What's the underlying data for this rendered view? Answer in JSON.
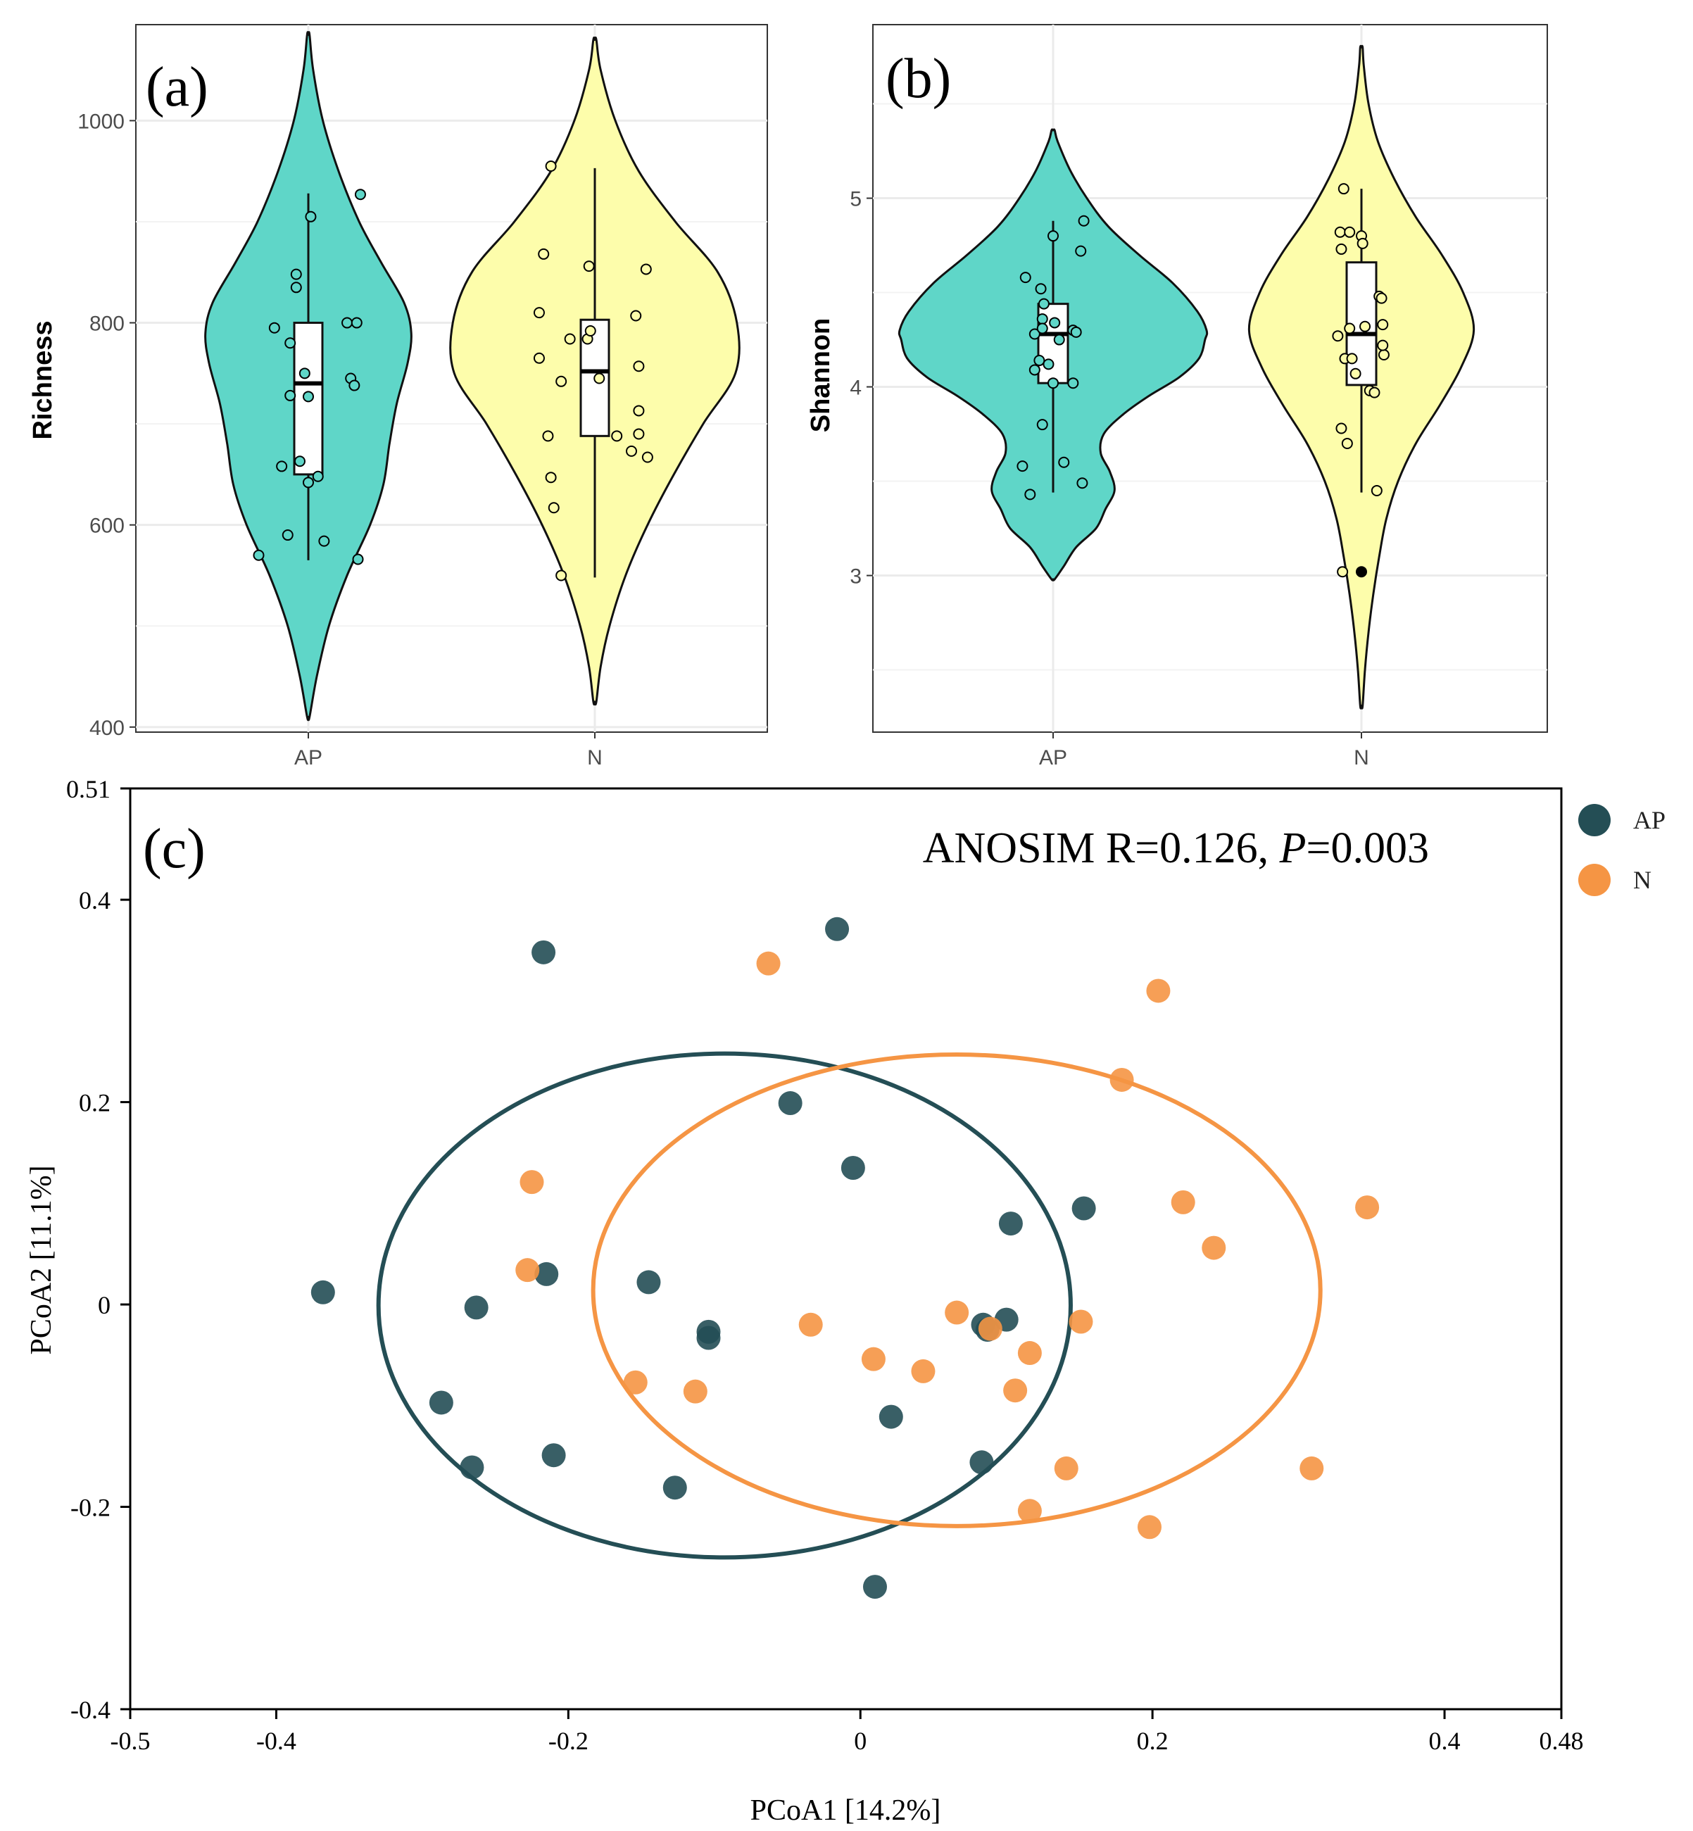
{
  "colors": {
    "ap_violin": "#5fd6c8",
    "n_violin": "#fdfdab",
    "ap_pcoa": "#244e55",
    "n_pcoa": "#f59544",
    "grid": "#ebebeb",
    "axis": "#333333"
  },
  "chart_data": [
    {
      "id": "a",
      "type": "violin",
      "panel_label": "(a)",
      "ylabel": "Richness",
      "categories": [
        "AP",
        "N"
      ],
      "ylim": [
        395,
        1095
      ],
      "yticks": [
        400,
        600,
        800,
        1000
      ],
      "ytick_labels": [
        "400",
        "600",
        "800",
        "1000"
      ],
      "grid": true,
      "violins": [
        {
          "name": "AP",
          "min": 410,
          "max": 1085,
          "profile": [
            [
              410,
              0.01
            ],
            [
              450,
              0.07
            ],
            [
              500,
              0.17
            ],
            [
              550,
              0.32
            ],
            [
              600,
              0.51
            ],
            [
              640,
              0.62
            ],
            [
              680,
              0.67
            ],
            [
              720,
              0.73
            ],
            [
              760,
              0.82
            ],
            [
              790,
              0.85
            ],
            [
              820,
              0.79
            ],
            [
              860,
              0.6
            ],
            [
              900,
              0.42
            ],
            [
              950,
              0.25
            ],
            [
              1000,
              0.12
            ],
            [
              1050,
              0.04
            ],
            [
              1085,
              0.01
            ]
          ],
          "box": {
            "q1": 650,
            "median": 740,
            "q3": 800,
            "whisker_low": 565,
            "whisker_high": 928
          },
          "points": [
            [
              -0.41,
              570
            ],
            [
              -0.17,
              590
            ],
            [
              -0.22,
              658
            ],
            [
              -0.28,
              795
            ],
            [
              -0.15,
              728
            ],
            [
              -0.07,
              663
            ],
            [
              -0.15,
              780
            ],
            [
              -0.1,
              835
            ],
            [
              -0.1,
              848
            ],
            [
              -0.03,
              750
            ],
            [
              0.0,
              727
            ],
            [
              0.02,
              905
            ],
            [
              0.0,
              642
            ],
            [
              0.08,
              648
            ],
            [
              0.13,
              584
            ],
            [
              0.32,
              800
            ],
            [
              0.4,
              800
            ],
            [
              0.35,
              745
            ],
            [
              0.38,
              738
            ],
            [
              0.41,
              566
            ]
          ],
          "outliers": [
            [
              0.43,
              927
            ]
          ]
        },
        {
          "name": "N",
          "min": 425,
          "max": 1080,
          "profile": [
            [
              425,
              0.01
            ],
            [
              460,
              0.04
            ],
            [
              500,
              0.1
            ],
            [
              550,
              0.21
            ],
            [
              600,
              0.36
            ],
            [
              650,
              0.54
            ],
            [
              700,
              0.74
            ],
            [
              750,
              0.96
            ],
            [
              800,
              0.97
            ],
            [
              850,
              0.84
            ],
            [
              900,
              0.55
            ],
            [
              950,
              0.3
            ],
            [
              1000,
              0.14
            ],
            [
              1050,
              0.04
            ],
            [
              1080,
              0.01
            ]
          ],
          "box": {
            "q1": 688,
            "median": 752,
            "q3": 803,
            "whisker_low": 548,
            "whisker_high": 953
          },
          "points": [
            [
              -0.3,
              955
            ],
            [
              -0.35,
              868
            ],
            [
              -0.38,
              765
            ],
            [
              -0.38,
              810
            ],
            [
              -0.17,
              784
            ],
            [
              -0.23,
              742
            ],
            [
              -0.05,
              784
            ],
            [
              -0.04,
              856
            ],
            [
              -0.03,
              792
            ],
            [
              0.03,
              745
            ],
            [
              -0.32,
              688
            ],
            [
              -0.3,
              647
            ],
            [
              -0.28,
              617
            ],
            [
              -0.23,
              550
            ],
            [
              0.15,
              688
            ],
            [
              0.25,
              673
            ],
            [
              0.3,
              690
            ],
            [
              0.3,
              713
            ],
            [
              0.35,
              853
            ],
            [
              0.28,
              807
            ],
            [
              0.3,
              757
            ],
            [
              0.36,
              667
            ]
          ],
          "outliers": []
        }
      ]
    },
    {
      "id": "b",
      "type": "violin",
      "panel_label": "(b)",
      "ylabel": "Shannon",
      "categories": [
        "AP",
        "N"
      ],
      "ylim": [
        2.17,
        5.92
      ],
      "yticks": [
        3,
        4,
        5
      ],
      "ytick_labels": [
        "3",
        "4",
        "5"
      ],
      "grid": true,
      "violins": [
        {
          "name": "AP",
          "min": 2.98,
          "max": 5.36,
          "profile": [
            [
              2.98,
              0.01
            ],
            [
              3.05,
              0.07
            ],
            [
              3.15,
              0.15
            ],
            [
              3.25,
              0.28
            ],
            [
              3.35,
              0.34
            ],
            [
              3.45,
              0.4
            ],
            [
              3.55,
              0.37
            ],
            [
              3.65,
              0.31
            ],
            [
              3.75,
              0.33
            ],
            [
              3.85,
              0.45
            ],
            [
              3.95,
              0.62
            ],
            [
              4.05,
              0.82
            ],
            [
              4.15,
              0.95
            ],
            [
              4.25,
              0.99
            ],
            [
              4.3,
              1.0
            ],
            [
              4.4,
              0.94
            ],
            [
              4.55,
              0.78
            ],
            [
              4.7,
              0.56
            ],
            [
              4.85,
              0.36
            ],
            [
              5.0,
              0.22
            ],
            [
              5.15,
              0.11
            ],
            [
              5.3,
              0.03
            ],
            [
              5.36,
              0.01
            ]
          ],
          "box": {
            "q1": 4.02,
            "median": 4.28,
            "q3": 4.44,
            "whisker_low": 3.44,
            "whisker_high": 4.88
          },
          "points": [
            [
              -0.18,
              4.58
            ],
            [
              -0.2,
              3.58
            ],
            [
              -0.15,
              3.43
            ],
            [
              -0.12,
              4.28
            ],
            [
              -0.09,
              4.14
            ],
            [
              -0.12,
              4.09
            ],
            [
              -0.07,
              4.36
            ],
            [
              -0.06,
              4.44
            ],
            [
              -0.08,
              4.52
            ],
            [
              -0.07,
              4.31
            ],
            [
              -0.03,
              4.12
            ],
            [
              -0.07,
              3.8
            ],
            [
              0.0,
              4.8
            ],
            [
              0.01,
              4.34
            ],
            [
              0.0,
              4.02
            ],
            [
              0.04,
              4.25
            ],
            [
              0.07,
              3.6
            ],
            [
              0.13,
              4.3
            ],
            [
              0.15,
              4.29
            ],
            [
              0.13,
              4.02
            ],
            [
              0.18,
              4.72
            ],
            [
              0.19,
              3.49
            ]
          ],
          "outliers": [
            [
              0.2,
              4.88
            ]
          ]
        },
        {
          "name": "N",
          "min": 2.31,
          "max": 5.8,
          "profile": [
            [
              2.31,
              0.01
            ],
            [
              2.5,
              0.03
            ],
            [
              2.7,
              0.06
            ],
            [
              2.9,
              0.1
            ],
            [
              3.1,
              0.15
            ],
            [
              3.3,
              0.21
            ],
            [
              3.5,
              0.31
            ],
            [
              3.7,
              0.46
            ],
            [
              3.9,
              0.66
            ],
            [
              4.1,
              0.84
            ],
            [
              4.3,
              0.95
            ],
            [
              4.5,
              0.86
            ],
            [
              4.7,
              0.68
            ],
            [
              4.9,
              0.46
            ],
            [
              5.1,
              0.28
            ],
            [
              5.3,
              0.14
            ],
            [
              5.5,
              0.06
            ],
            [
              5.7,
              0.02
            ],
            [
              5.8,
              0.01
            ]
          ],
          "box": {
            "q1": 4.01,
            "median": 4.28,
            "q3": 4.66,
            "whisker_low": 3.44,
            "whisker_high": 5.05
          },
          "points": [
            [
              -0.15,
              5.05
            ],
            [
              -0.18,
              4.82
            ],
            [
              -0.17,
              4.73
            ],
            [
              -0.1,
              4.82
            ],
            [
              -0.2,
              4.27
            ],
            [
              -0.14,
              4.15
            ],
            [
              -0.1,
              4.31
            ],
            [
              -0.12,
              3.7
            ],
            [
              -0.17,
              3.78
            ],
            [
              -0.05,
              4.07
            ],
            [
              -0.08,
              4.15
            ],
            [
              -0.16,
              3.02
            ],
            [
              0.0,
              4.8
            ],
            [
              0.01,
              4.76
            ],
            [
              0.03,
              4.32
            ],
            [
              0.07,
              3.98
            ],
            [
              0.15,
              4.48
            ],
            [
              0.17,
              4.47
            ],
            [
              0.18,
              4.33
            ],
            [
              0.19,
              4.17
            ],
            [
              0.18,
              4.22
            ],
            [
              0.11,
              3.97
            ],
            [
              0.13,
              3.45
            ]
          ],
          "outliers": [
            [
              0.0,
              3.02
            ]
          ]
        }
      ]
    },
    {
      "id": "c",
      "type": "scatter",
      "panel_label": "(c)",
      "xlabel": "PCoA1 [14.2%]",
      "ylabel": "PCoA2 [11.1%]",
      "xlim": [
        -0.5,
        0.48
      ],
      "ylim": [
        -0.4,
        0.51
      ],
      "xticks": [
        -0.5,
        -0.4,
        -0.2,
        0,
        0.2,
        0.4,
        0.48
      ],
      "xtick_labels": [
        "-0.5",
        "-0.4",
        "-0.2",
        "0",
        "0.2",
        "0.4",
        "0.48"
      ],
      "yticks": [
        -0.4,
        -0.2,
        0,
        0.2,
        0.4,
        0.51
      ],
      "ytick_labels": [
        "-0.4",
        "-0.2",
        "0",
        "0.2",
        "0.4",
        "0.51"
      ],
      "annotation": {
        "prefix": "ANOSIM R=0.126, ",
        "italic": "P",
        "suffix": "=0.003"
      },
      "legend_position": "top-right",
      "series": [
        {
          "name": "AP",
          "points": [
            [
              -0.016,
              0.371
            ],
            [
              -0.217,
              0.348
            ],
            [
              -0.048,
              0.199
            ],
            [
              -0.005,
              0.135
            ],
            [
              0.153,
              0.095
            ],
            [
              0.103,
              0.08
            ],
            [
              -0.368,
              0.012
            ],
            [
              -0.215,
              0.03
            ],
            [
              -0.145,
              0.022
            ],
            [
              -0.263,
              -0.003
            ],
            [
              -0.104,
              -0.027
            ],
            [
              -0.104,
              -0.033
            ],
            [
              0.084,
              -0.02
            ],
            [
              0.087,
              -0.025
            ],
            [
              0.1,
              -0.015
            ],
            [
              -0.287,
              -0.097
            ],
            [
              0.021,
              -0.111
            ],
            [
              -0.266,
              -0.161
            ],
            [
              -0.21,
              -0.149
            ],
            [
              -0.127,
              -0.181
            ],
            [
              0.083,
              -0.156
            ],
            [
              0.01,
              -0.279
            ]
          ],
          "ellipse": {
            "cx": -0.093,
            "cy": -0.001,
            "rx": 0.237,
            "ry": 0.249
          }
        },
        {
          "name": "N",
          "points": [
            [
              -0.063,
              0.337
            ],
            [
              0.204,
              0.31
            ],
            [
              0.179,
              0.222
            ],
            [
              -0.225,
              0.121
            ],
            [
              -0.228,
              0.034
            ],
            [
              0.221,
              0.101
            ],
            [
              0.242,
              0.056
            ],
            [
              0.347,
              0.096
            ],
            [
              -0.034,
              -0.02
            ],
            [
              0.066,
              -0.008
            ],
            [
              0.151,
              -0.017
            ],
            [
              0.009,
              -0.054
            ],
            [
              0.116,
              -0.048
            ],
            [
              -0.154,
              -0.077
            ],
            [
              -0.113,
              -0.086
            ],
            [
              0.043,
              -0.066
            ],
            [
              0.106,
              -0.085
            ],
            [
              0.089,
              -0.024
            ],
            [
              0.141,
              -0.162
            ],
            [
              0.309,
              -0.162
            ],
            [
              0.116,
              -0.204
            ],
            [
              0.198,
              -0.22
            ]
          ],
          "ellipse": {
            "cx": 0.066,
            "cy": 0.014,
            "rx": 0.249,
            "ry": 0.233
          }
        }
      ]
    }
  ]
}
